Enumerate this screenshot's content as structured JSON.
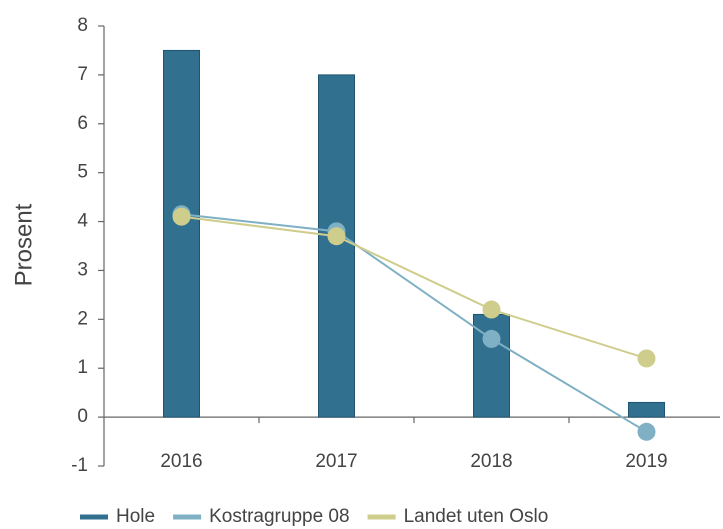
{
  "chart_data": {
    "type": "bar",
    "y_label": "Prosent",
    "categories": [
      "2016",
      "2017",
      "2018",
      "2019"
    ],
    "series": [
      {
        "name": "Hole",
        "color": "#31718f",
        "type": "bar",
        "values": [
          7.5,
          7.0,
          2.1,
          0.3
        ]
      },
      {
        "name": "Kostragruppe 08",
        "color": "#7fb0c4",
        "type": "line",
        "values": [
          4.15,
          3.8,
          1.6,
          -0.3
        ]
      },
      {
        "name": "Landet uten Oslo",
        "color": "#cfcd8c",
        "type": "line",
        "values": [
          4.1,
          3.7,
          2.2,
          1.2
        ]
      }
    ],
    "ylim": [
      -1,
      8
    ],
    "yticks": [
      -1,
      0,
      1,
      2,
      3,
      4,
      5,
      6,
      7,
      8
    ],
    "grid": false,
    "legend": "bottom"
  }
}
